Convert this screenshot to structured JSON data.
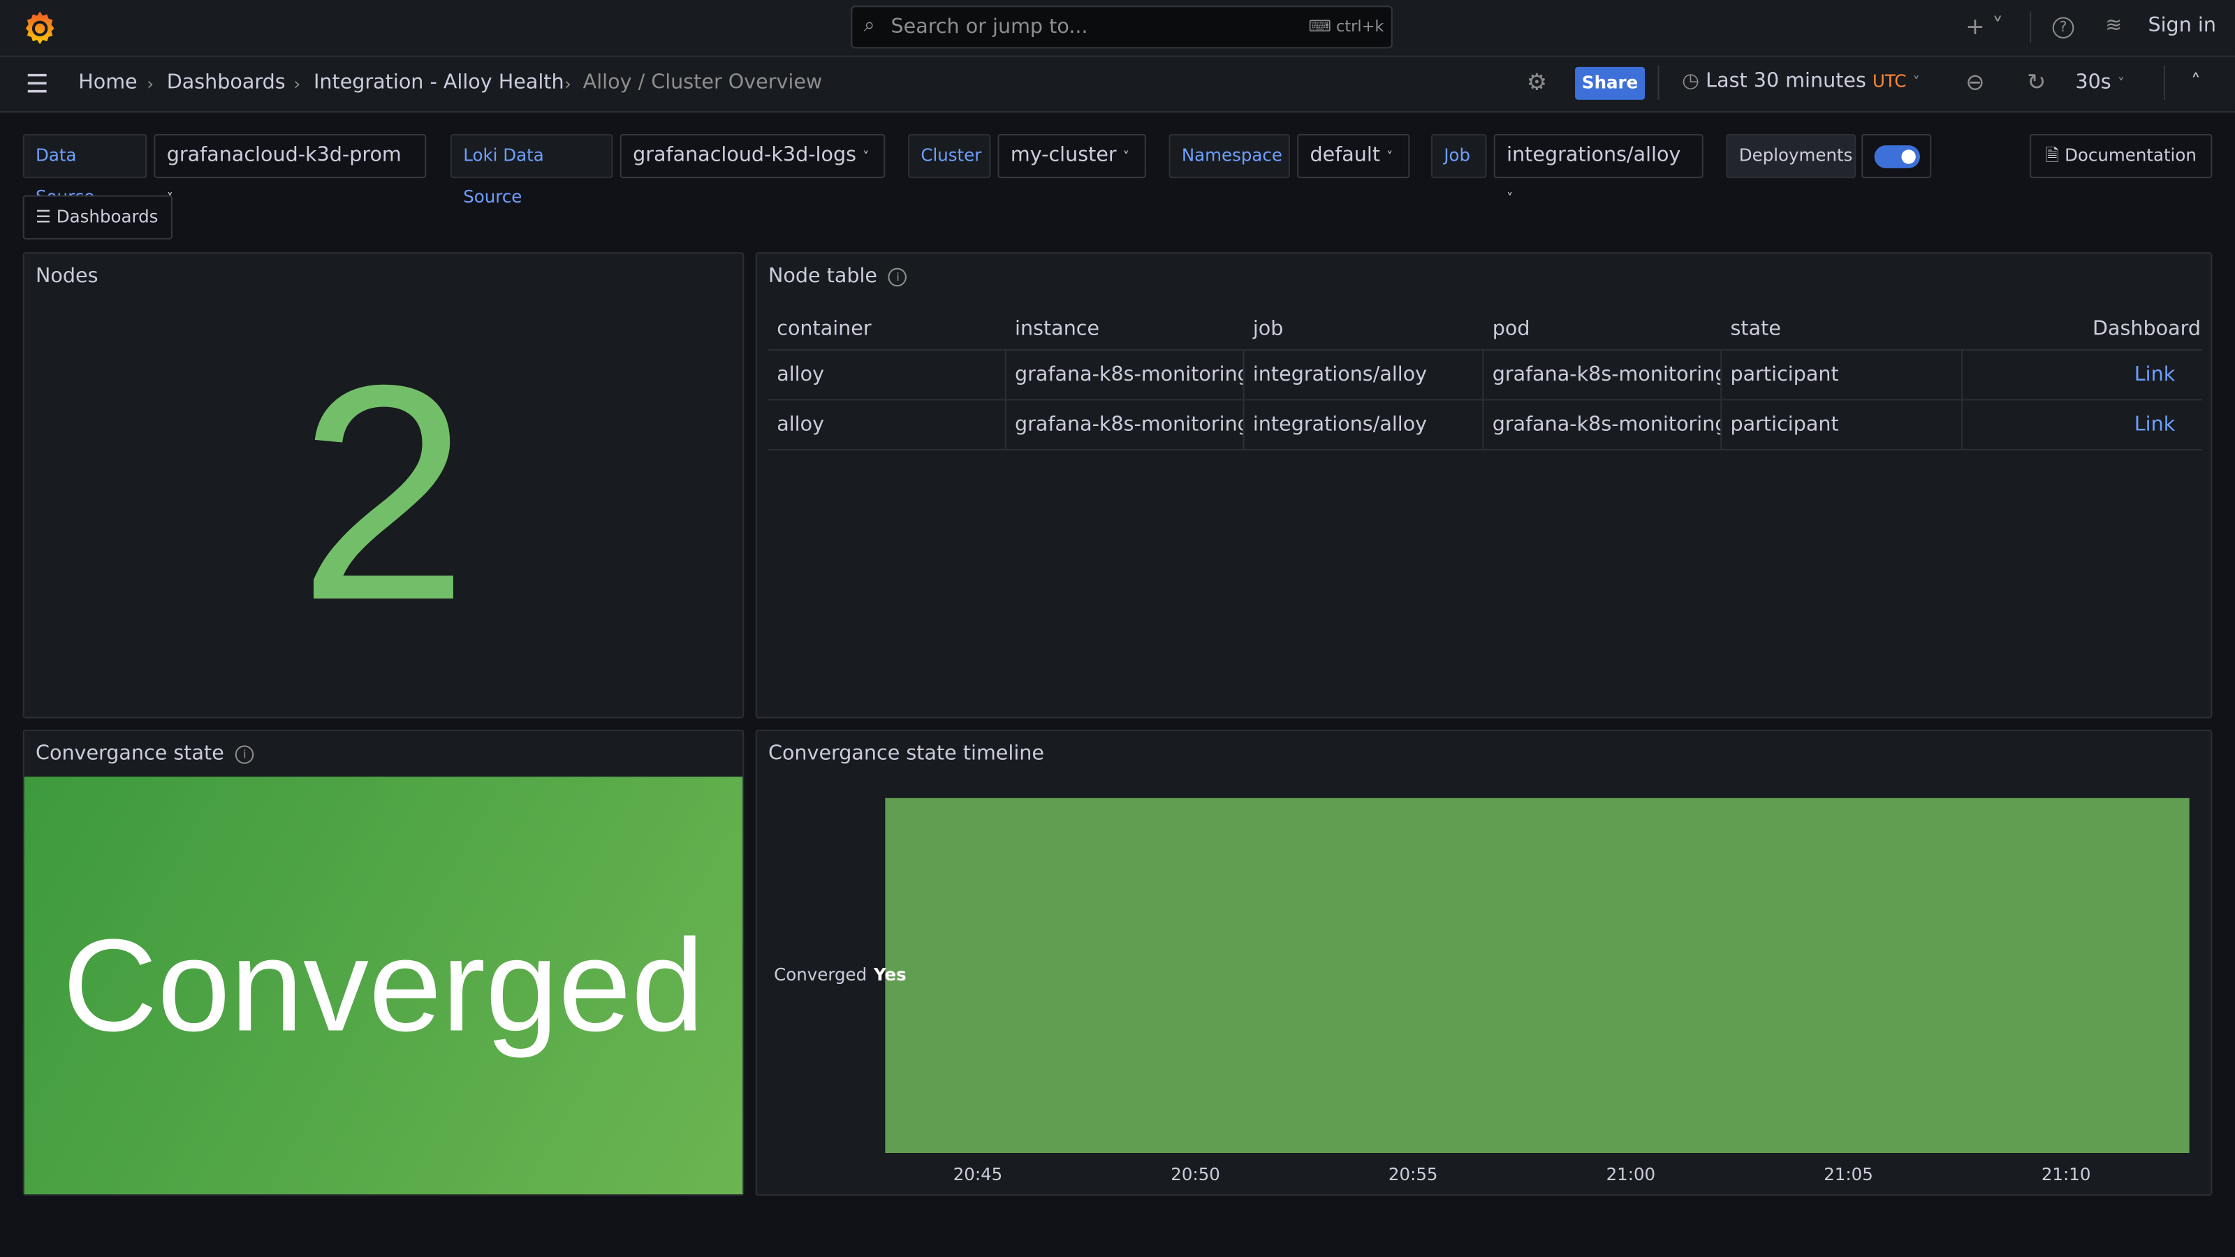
{
  "topbar": {
    "search_placeholder": "Search or jump to...",
    "shortcut": "ctrl+k",
    "sign_in": "Sign in"
  },
  "breadcrumbs": [
    "Home",
    "Dashboards",
    "Integration - Alloy Health",
    "Alloy / Cluster Overview"
  ],
  "toolbar": {
    "share": "Share",
    "time_range": "Last 30 minutes",
    "timezone": "UTC",
    "refresh": "30s"
  },
  "variables": [
    {
      "label": "Data Source",
      "value": "grafanacloud-k3d-prom"
    },
    {
      "label": "Loki Data Source",
      "value": "grafanacloud-k3d-logs"
    },
    {
      "label": "Cluster",
      "value": "my-cluster"
    },
    {
      "label": "Namespace",
      "value": "default"
    },
    {
      "label": "Job",
      "value": "integrations/alloy"
    }
  ],
  "deployments": {
    "label": "Deployments",
    "enabled": true
  },
  "documentation": "Documentation",
  "dashboards_link": "Dashboards",
  "nodes": {
    "title": "Nodes",
    "value": "2",
    "color": "#73bf69"
  },
  "node_table": {
    "title": "Node table",
    "columns": [
      "container",
      "instance",
      "job",
      "pod",
      "state",
      "Dashboard"
    ],
    "rows": [
      [
        "alloy",
        "grafana-k8s-monitoring-",
        "integrations/alloy",
        "grafana-k8s-monitoring-",
        "participant",
        "Link"
      ],
      [
        "alloy",
        "grafana-k8s-monitoring-",
        "integrations/alloy",
        "grafana-k8s-monitoring-",
        "participant",
        "Link"
      ]
    ]
  },
  "convergence": {
    "title": "Convergance state",
    "value": "Converged",
    "color": "#56a64b"
  },
  "timeline": {
    "title": "Convergance state timeline",
    "row_label": "Converged",
    "value_label": "Yes",
    "color": "#629e51",
    "x_ticks": [
      "20:45",
      "20:50",
      "20:55",
      "21:00",
      "21:05",
      "21:10"
    ]
  }
}
